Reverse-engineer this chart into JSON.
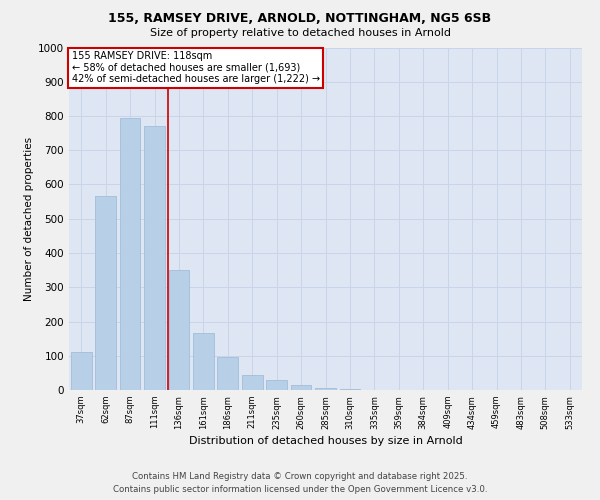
{
  "title_line1": "155, RAMSEY DRIVE, ARNOLD, NOTTINGHAM, NG5 6SB",
  "title_line2": "Size of property relative to detached houses in Arnold",
  "xlabel": "Distribution of detached houses by size in Arnold",
  "ylabel": "Number of detached properties",
  "categories": [
    "37sqm",
    "62sqm",
    "87sqm",
    "111sqm",
    "136sqm",
    "161sqm",
    "186sqm",
    "211sqm",
    "235sqm",
    "260sqm",
    "285sqm",
    "310sqm",
    "335sqm",
    "359sqm",
    "384sqm",
    "409sqm",
    "434sqm",
    "459sqm",
    "483sqm",
    "508sqm",
    "533sqm"
  ],
  "values": [
    110,
    565,
    795,
    770,
    350,
    165,
    95,
    45,
    30,
    15,
    5,
    2,
    1,
    1,
    0,
    0,
    0,
    0,
    0,
    0,
    0
  ],
  "bar_color": "#b8cfe8",
  "bar_edge_color": "#9ab8d8",
  "grid_color": "#c8d4e8",
  "background_color": "#dde6f2",
  "fig_background": "#f0f0f0",
  "annotation_text": "155 RAMSEY DRIVE: 118sqm\n← 58% of detached houses are smaller (1,693)\n42% of semi-detached houses are larger (1,222) →",
  "annotation_box_color": "#ffffff",
  "annotation_box_edge": "#cc0000",
  "vline_x": 3.57,
  "vline_color": "#cc0000",
  "ylim": [
    0,
    1000
  ],
  "yticks": [
    0,
    100,
    200,
    300,
    400,
    500,
    600,
    700,
    800,
    900,
    1000
  ],
  "footer_line1": "Contains HM Land Registry data © Crown copyright and database right 2025.",
  "footer_line2": "Contains public sector information licensed under the Open Government Licence v3.0."
}
